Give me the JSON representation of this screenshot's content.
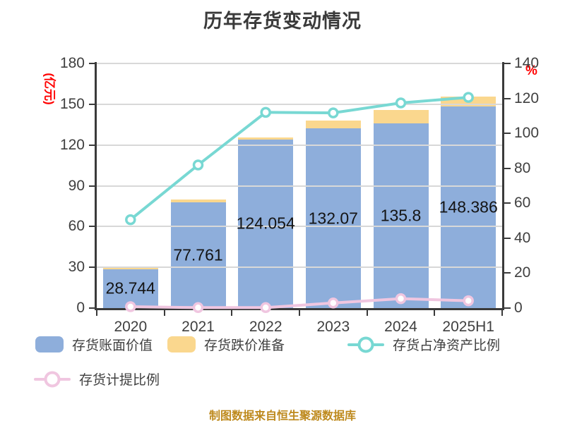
{
  "title": "历年存货变动情况",
  "footer": "制图数据来自恒生聚源数据库",
  "colors": {
    "bar_book_value": "#8eaedb",
    "bar_provision": "#fad78e",
    "line_net_asset_ratio": "#78d8d3",
    "line_provision_ratio": "#f0c6e0",
    "axis_line": "#3a3a3a",
    "axis_text": "#3f3f3f",
    "grid": "#d8d8d8",
    "unit_text": "#ff0000",
    "value_label": "#141414",
    "footer_text": "#be8a1e"
  },
  "legend": {
    "items": [
      {
        "label": "存货账面价值",
        "icon": "bar-swatch",
        "colorKey": "bar_book_value"
      },
      {
        "label": "存货跌价准备",
        "icon": "bar-swatch",
        "colorKey": "bar_provision"
      },
      {
        "label": "存货占净资产比例",
        "icon": "line-marker",
        "colorKey": "line_net_asset_ratio"
      },
      {
        "label": "存货计提比例",
        "icon": "line-marker",
        "colorKey": "line_provision_ratio"
      }
    ]
  },
  "chart_data": {
    "type": "bar+line combo (stacked bars, dual axis)",
    "categories": [
      "2020",
      "2021",
      "2022",
      "2023",
      "2024",
      "2025H1"
    ],
    "left_axis": {
      "unit": "(亿元)",
      "min": 0,
      "max": 180,
      "ticks": [
        0,
        30,
        60,
        90,
        120,
        150,
        180
      ]
    },
    "right_axis": {
      "unit": "%",
      "min": 0,
      "max": 140,
      "ticks": [
        0,
        20,
        40,
        60,
        80,
        100,
        120,
        140
      ]
    },
    "grid": "horizontal gridlines every 30 (left axis), drawn over bars",
    "legend_position": "bottom-left, two rows",
    "series": [
      {
        "name": "存货账面价值",
        "type": "bar",
        "stack": "inventory",
        "axis": "left",
        "colorKey": "bar_book_value",
        "values": [
          28.744,
          77.761,
          124.054,
          132.07,
          135.8,
          148.386
        ],
        "value_labels": [
          "28.744",
          "77.761",
          "124.054",
          "132.07",
          "135.8",
          "148.386"
        ]
      },
      {
        "name": "存货跌价准备",
        "type": "bar",
        "stack": "inventory",
        "axis": "left",
        "colorKey": "bar_provision",
        "values": [
          1.5,
          2.0,
          1.4,
          6.0,
          10.1,
          7.3
        ],
        "note": "values estimated from pixel heights of yellow caps"
      },
      {
        "name": "存货占净资产比例",
        "type": "line",
        "axis": "right",
        "colorKey": "line_net_asset_ratio",
        "values": [
          50.6,
          81.9,
          112.0,
          111.7,
          117.4,
          120.6
        ],
        "note": "values estimated from marker positions, %"
      },
      {
        "name": "存货计提比例",
        "type": "line",
        "axis": "right",
        "colorKey": "line_provision_ratio",
        "values": [
          0.8,
          0.3,
          0.3,
          2.9,
          5.4,
          4.2
        ],
        "note": "values estimated from marker positions, %"
      }
    ]
  }
}
